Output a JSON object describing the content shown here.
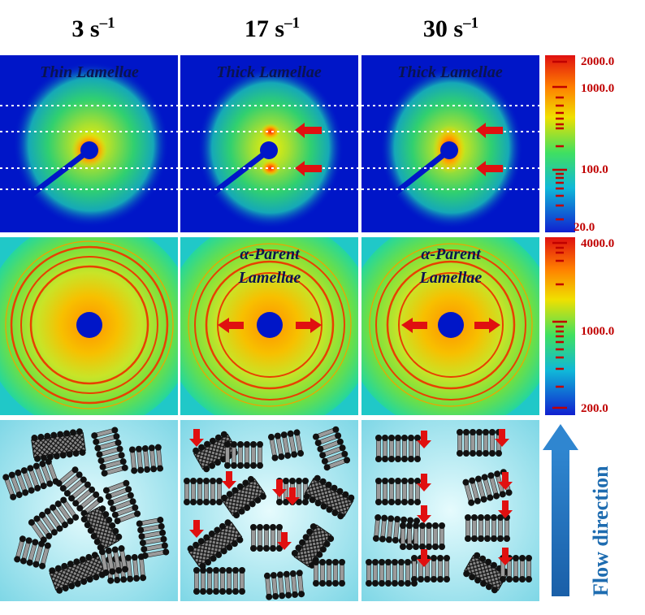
{
  "columns": [
    {
      "rate": "3 s",
      "exp": "–1"
    },
    {
      "rate": "17 s",
      "exp": "–1"
    },
    {
      "rate": "30 s",
      "exp": "–1"
    }
  ],
  "saxs_row": {
    "labels": [
      "Thin Lamellae",
      "Thick Lamellae",
      "Thick Lamellae"
    ],
    "colorbar": {
      "ticks": [
        "2000.0",
        "1000.0",
        "100.0",
        "20.0"
      ]
    }
  },
  "waxs_row": {
    "labels": [
      "",
      "α-Parent Lamellae",
      "α-Parent Lamellae"
    ],
    "label_lines": [
      [
        "",
        ""
      ],
      [
        "α-Parent",
        "Lamellae"
      ],
      [
        "α-Parent",
        "Lamellae"
      ]
    ],
    "colorbar": {
      "ticks": [
        "4000.0",
        "1000.0",
        "200.0"
      ]
    }
  },
  "flow": {
    "label": "Flow direction",
    "color": "#1e6cb0"
  },
  "colors": {
    "background": "#0016c8",
    "arrow": "#e01010",
    "tick": "#c00000",
    "label": "#0a1450",
    "cartoon_bg": "#9fe3ee"
  }
}
